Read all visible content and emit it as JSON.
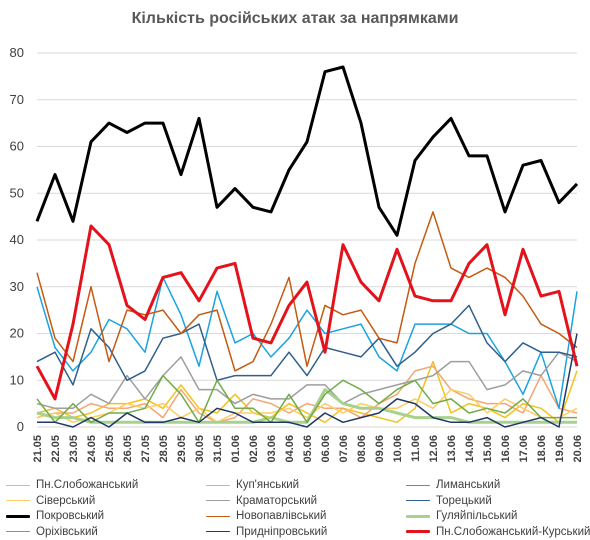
{
  "chart_data": {
    "type": "line",
    "title": "Кількість російських атак за напрямками",
    "xlabel": "",
    "ylabel": "",
    "ylim": [
      0,
      80
    ],
    "yticks": [
      0,
      10,
      20,
      30,
      40,
      50,
      60,
      70,
      80
    ],
    "grid": true,
    "legend_position": "bottom",
    "categories": [
      "21.05",
      "22.05",
      "23.05",
      "24.05",
      "25.05",
      "26.05",
      "27.05",
      "28.05",
      "29.05",
      "30.05",
      "31.05",
      "01.06",
      "02.06",
      "03.06",
      "04.06",
      "05.06",
      "06.06",
      "07.06",
      "08.06",
      "09.06",
      "10.06",
      "11.06",
      "12.06",
      "13.06",
      "14.06",
      "15.06",
      "16.06",
      "17.06",
      "18.06",
      "19.06",
      "20.06"
    ],
    "series": [
      {
        "name": "Пн.Слобожанський",
        "color": "#f2c21b",
        "width": 1.5,
        "values": [
          3,
          4,
          2,
          3,
          5,
          5,
          6,
          4,
          9,
          4,
          3,
          7,
          3,
          2,
          5,
          3,
          1,
          4,
          3,
          2,
          1,
          4,
          14,
          3,
          5,
          4,
          2,
          5,
          4,
          1,
          12
        ]
      },
      {
        "name": "Куп'янський",
        "color": "#f4a574",
        "width": 1.5,
        "values": [
          2,
          3,
          3,
          5,
          4,
          4,
          5,
          2,
          8,
          3,
          1,
          2,
          6,
          5,
          3,
          5,
          4,
          4,
          2,
          5,
          7,
          12,
          13,
          8,
          6,
          5,
          5,
          3,
          11,
          4,
          3
        ]
      },
      {
        "name": "Лиманський",
        "color": "#1aa3e0",
        "width": 1.5,
        "values": [
          30,
          17,
          12,
          16,
          23,
          21,
          16,
          32,
          24,
          13,
          29,
          18,
          20,
          15,
          19,
          25,
          20,
          21,
          22,
          15,
          12,
          22,
          22,
          22,
          20,
          20,
          14,
          7,
          16,
          4,
          29
        ]
      },
      {
        "name": "Сіверський",
        "color": "#ffcc66",
        "width": 1.5,
        "values": [
          2,
          3,
          1,
          2,
          3,
          5,
          4,
          5,
          2,
          4,
          1,
          3,
          3,
          3,
          4,
          2,
          5,
          3,
          5,
          4,
          4,
          6,
          4,
          8,
          7,
          3,
          6,
          4,
          2,
          2,
          4
        ]
      },
      {
        "name": "Краматорський",
        "color": "#9e9e9e",
        "width": 1.5,
        "values": [
          5,
          4,
          4,
          7,
          5,
          11,
          6,
          11,
          15,
          8,
          8,
          5,
          7,
          6,
          6,
          9,
          9,
          5,
          7,
          8,
          9,
          10,
          11,
          14,
          14,
          8,
          9,
          12,
          11,
          16,
          14
        ]
      },
      {
        "name": "Торецький",
        "color": "#2f5f8a",
        "width": 1.5,
        "values": [
          14,
          16,
          9,
          21,
          17,
          10,
          12,
          19,
          20,
          22,
          10,
          11,
          11,
          11,
          16,
          11,
          17,
          16,
          15,
          19,
          13,
          16,
          20,
          22,
          26,
          18,
          14,
          18,
          16,
          16,
          15
        ]
      },
      {
        "name": "Покровський",
        "color": "#000000",
        "width": 3,
        "values": [
          44,
          54,
          44,
          61,
          65,
          63,
          65,
          65,
          54,
          66,
          47,
          51,
          47,
          46,
          55,
          61,
          76,
          77,
          65,
          47,
          41,
          57,
          62,
          66,
          58,
          58,
          46,
          56,
          57,
          48,
          52
        ]
      },
      {
        "name": "Новопавлівський",
        "color": "#c55a11",
        "width": 1.5,
        "values": [
          33,
          19,
          14,
          30,
          14,
          25,
          24,
          25,
          20,
          24,
          25,
          12,
          14,
          22,
          32,
          13,
          26,
          24,
          25,
          19,
          18,
          35,
          46,
          34,
          32,
          34,
          32,
          28,
          22,
          20,
          17
        ]
      },
      {
        "name": "Гуляйпільський",
        "color": "#a9d18e",
        "width": 3,
        "values": [
          3,
          2,
          2,
          1,
          1,
          1,
          1,
          1,
          1,
          1,
          1,
          1,
          1,
          2,
          1,
          1,
          8,
          5,
          4,
          4,
          3,
          2,
          2,
          2,
          1,
          1,
          1,
          1,
          1,
          1,
          1
        ]
      },
      {
        "name": "Оріхівський",
        "color": "#70ad47",
        "width": 1.5,
        "values": [
          6,
          1,
          5,
          1,
          3,
          3,
          4,
          11,
          7,
          1,
          10,
          4,
          4,
          1,
          7,
          1,
          7,
          10,
          8,
          5,
          8,
          10,
          5,
          6,
          3,
          4,
          3,
          6,
          2,
          2,
          2
        ]
      },
      {
        "name": "Придніпровський",
        "color": "#1f3864",
        "width": 1.5,
        "values": [
          1,
          1,
          0,
          2,
          0,
          3,
          1,
          1,
          2,
          1,
          4,
          3,
          1,
          1,
          1,
          0,
          3,
          1,
          2,
          3,
          6,
          5,
          2,
          1,
          1,
          2,
          0,
          1,
          2,
          0,
          20
        ]
      },
      {
        "name": "Пн.Слобожанський-Курський",
        "color": "#e3121b",
        "width": 3,
        "values": [
          13,
          6,
          22,
          43,
          39,
          26,
          23,
          32,
          33,
          27,
          34,
          35,
          19,
          18,
          26,
          31,
          16,
          39,
          31,
          27,
          38,
          28,
          27,
          27,
          35,
          39,
          24,
          38,
          28,
          29,
          13
        ]
      }
    ]
  }
}
